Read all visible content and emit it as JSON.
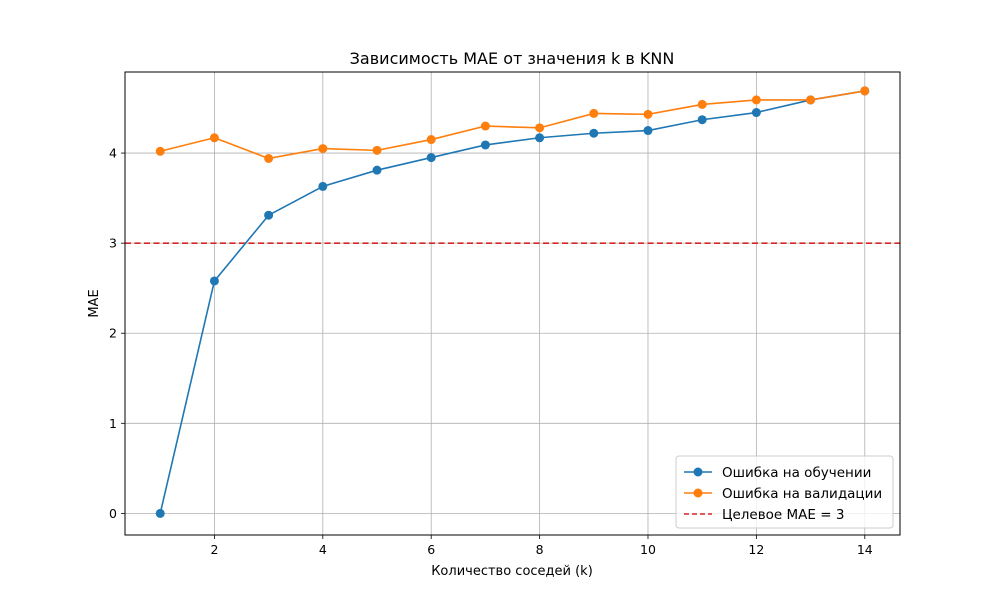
{
  "chart_data": {
    "type": "line",
    "title": "Зависимость MAE от значения k в KNN",
    "xlabel": "Количество соседей (k)",
    "ylabel": "MAE",
    "x": [
      1,
      2,
      3,
      4,
      5,
      6,
      7,
      8,
      9,
      10,
      11,
      12,
      13,
      14
    ],
    "xlim": [
      0.35,
      14.65
    ],
    "ylim": [
      -0.24,
      4.9
    ],
    "xticks": [
      "2",
      "4",
      "6",
      "8",
      "10",
      "12",
      "14"
    ],
    "yticks": [
      "0",
      "1",
      "2",
      "3",
      "4"
    ],
    "grid": true,
    "legend_position": "lower-right",
    "series": [
      {
        "name": "Ошибка на обучении",
        "color": "#1f77b4",
        "values": [
          0.0,
          2.58,
          3.31,
          3.63,
          3.81,
          3.95,
          4.09,
          4.17,
          4.22,
          4.25,
          4.37,
          4.45,
          4.59,
          4.69
        ]
      },
      {
        "name": "Ошибка на валидации",
        "color": "#ff7f0e",
        "values": [
          4.02,
          4.17,
          3.94,
          4.05,
          4.03,
          4.15,
          4.3,
          4.28,
          4.44,
          4.43,
          4.54,
          4.59,
          4.59,
          4.69
        ]
      }
    ],
    "reference_line": {
      "name": "Целевое MAE = 3",
      "y": 3,
      "color": "#d62728",
      "style": "dashed"
    }
  }
}
